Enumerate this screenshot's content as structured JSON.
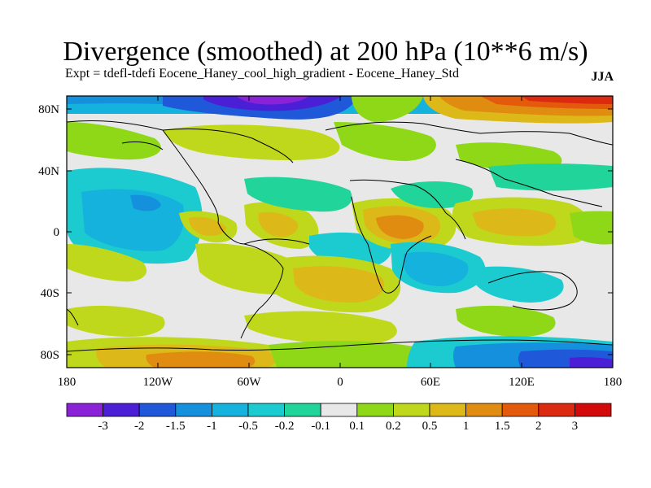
{
  "header": {
    "title": "Divergence (smoothed) at 200 hPa (10**6 m/s)",
    "subtitle": "Expt = tdefl-tdefi  Eocene_Haney_cool_high_gradient - Eocene_Haney_Std",
    "season": "JJA"
  },
  "axes": {
    "lat_labels": [
      "80N",
      "40N",
      "0",
      "40S",
      "80S"
    ],
    "lon_labels": [
      "180",
      "120W",
      "60W",
      "0",
      "60E",
      "120E",
      "180"
    ]
  },
  "colorbar": {
    "labels": [
      "-3",
      "-2",
      "-1.5",
      "-1",
      "-0.5",
      "-0.2",
      "-0.1",
      "0.1",
      "0.2",
      "0.5",
      "1",
      "1.5",
      "2",
      "3"
    ],
    "colors": [
      "#8a22d8",
      "#4b1fd6",
      "#1f58d8",
      "#1590dc",
      "#14b2dc",
      "#1ccbd0",
      "#20d49a",
      "#e8e8e8",
      "#8ed818",
      "#c0d81c",
      "#dcb818",
      "#e08c10",
      "#e45a0c",
      "#dc2a10",
      "#d20a0a"
    ]
  },
  "palette": {
    "neutral": "#e8e8e8",
    "land_outline": "#000000"
  }
}
